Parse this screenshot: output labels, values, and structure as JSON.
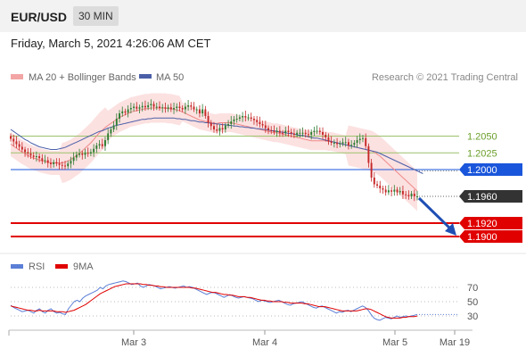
{
  "header": {
    "symbol": "EUR/USD",
    "interval": "30 MIN"
  },
  "timestamp": "Friday, March 5, 2021 4:26:06 AM CET",
  "legend": {
    "ma20": "MA 20 + Bollinger Bands",
    "ma50": "MA 50",
    "copyright": "Research © 2021 Trading Central",
    "rsi": "RSI",
    "rsi_ma": "9MA"
  },
  "colors": {
    "candle_up": "#2e7d32",
    "candle_down": "#c62828",
    "ma20": "#f08a8a",
    "ma50": "#4a5fa8",
    "support": "#e00000",
    "pivot": "#1a56db",
    "current": "#333333",
    "resistance_line": "#9bc26b",
    "resistance_text": "#6a9f2a",
    "rsi": "#5b7fd6"
  },
  "chart_data": [
    {
      "type": "candlestick",
      "ylim": [
        1.188,
        1.212
      ],
      "x_ticks": [
        "Mar 3",
        "Mar 4",
        "Mar 5",
        "Mar 19"
      ],
      "levels": [
        {
          "value": 1.205,
          "label": "1.2050",
          "kind": "resistance"
        },
        {
          "value": 1.2025,
          "label": "1.2025",
          "kind": "resistance"
        },
        {
          "value": 1.2,
          "label": "1.2000",
          "kind": "pivot"
        },
        {
          "value": 1.196,
          "label": "1.1960",
          "kind": "current"
        },
        {
          "value": 1.192,
          "label": "1.1920",
          "kind": "support"
        },
        {
          "value": 1.19,
          "label": "1.1900",
          "kind": "support"
        }
      ],
      "close": [
        1.2046,
        1.2042,
        1.2038,
        1.2034,
        1.203,
        1.2026,
        1.2024,
        1.2021,
        1.2019,
        1.202,
        1.2017,
        1.2013,
        1.2014,
        1.201,
        1.2008,
        1.2011,
        1.2009,
        1.2007,
        1.2006,
        1.2005,
        1.2009,
        1.2013,
        1.2018,
        1.2022,
        1.2024,
        1.2022,
        1.2025,
        1.2024,
        1.2026,
        1.2031,
        1.2036,
        1.2038,
        1.2035,
        1.2044,
        1.2054,
        1.206,
        1.2066,
        1.2076,
        1.2084,
        1.2087,
        1.2085,
        1.209,
        1.2092,
        1.2094,
        1.2091,
        1.2093,
        1.2095,
        1.2093,
        1.2096,
        1.2098,
        1.2094,
        1.2094,
        1.2092,
        1.2093,
        1.2091,
        1.2093,
        1.209,
        1.2092,
        1.2094,
        1.2092,
        1.209,
        1.2094,
        1.2096,
        1.2094,
        1.209,
        1.209,
        1.2084,
        1.209,
        1.208,
        1.207,
        1.2065,
        1.206,
        1.2058,
        1.2062,
        1.206,
        1.2066,
        1.2068,
        1.2072,
        1.2075,
        1.2076,
        1.2078,
        1.208,
        1.2078,
        1.2078,
        1.2076,
        1.2074,
        1.2071,
        1.2068,
        1.2066,
        1.2062,
        1.2059,
        1.2058,
        1.2056,
        1.2058,
        1.2055,
        1.2054,
        1.2058,
        1.2056,
        1.2054,
        1.2052,
        1.2055,
        1.2055,
        1.2055,
        1.2053,
        1.2052,
        1.2056,
        1.2058,
        1.2058,
        1.2056,
        1.2052,
        1.2048,
        1.2042,
        1.204,
        1.204,
        1.2038,
        1.2039,
        1.2041,
        1.2041,
        1.2036,
        1.2037,
        1.204,
        1.2044,
        1.2046,
        1.2047,
        1.2035,
        1.201,
        1.1988,
        1.1978,
        1.1976,
        1.1972,
        1.197,
        1.1966,
        1.1969,
        1.1967,
        1.197,
        1.1966,
        1.1968,
        1.1963,
        1.1962,
        1.196,
        1.1964,
        1.196,
        1.196
      ],
      "ma20": [
        1.2038,
        1.2035,
        1.2032,
        1.2029,
        1.2026,
        1.2024,
        1.2021,
        1.2019,
        1.2017,
        1.2016,
        1.2014,
        1.2013,
        1.2012,
        1.2011,
        1.201,
        1.201,
        1.201,
        1.201,
        1.201,
        1.2011,
        1.2013,
        1.2015,
        1.2018,
        1.2021,
        1.2024,
        1.2028,
        1.2032,
        1.2036,
        1.204,
        1.2045,
        1.205,
        1.2055,
        1.2059,
        1.2063,
        1.2066,
        1.2069,
        1.2072,
        1.2075,
        1.2078,
        1.208,
        1.2082,
        1.2084,
        1.2086,
        1.2087,
        1.2088,
        1.2089,
        1.209,
        1.2091,
        1.2091,
        1.2092,
        1.2092,
        1.2092,
        1.2092,
        1.2092,
        1.2092,
        1.2091,
        1.2091,
        1.209,
        1.2089,
        1.2088,
        1.2086,
        1.2084,
        1.2082,
        1.208,
        1.2078,
        1.2076,
        1.2074,
        1.2073,
        1.2072,
        1.2071,
        1.207,
        1.2069,
        1.2069,
        1.207,
        1.207,
        1.207,
        1.207,
        1.207,
        1.2069,
        1.2068,
        1.2067,
        1.2066,
        1.2065,
        1.2064,
        1.2063,
        1.2062,
        1.2061,
        1.206,
        1.2059,
        1.2058,
        1.2057,
        1.2056,
        1.2055,
        1.2055,
        1.2054,
        1.2053,
        1.2052,
        1.2051,
        1.205,
        1.2049,
        1.2048,
        1.2047,
        1.2046,
        1.2045,
        1.2044,
        1.2043,
        1.2043,
        1.2043,
        1.2043,
        1.2043,
        1.2043,
        1.2042,
        1.2042,
        1.2041,
        1.204,
        1.2039,
        1.2038,
        1.2037,
        1.2036,
        1.2035,
        1.2034,
        1.2033,
        1.2032,
        1.2031,
        1.203,
        1.2029,
        1.2028,
        1.2026,
        1.2023,
        1.202,
        1.2016,
        1.2012,
        1.2008,
        1.2004,
        1.2,
        1.1996,
        1.1992,
        1.1988,
        1.1984,
        1.198,
        1.1976,
        1.1972,
        1.1968
      ],
      "ma50": [
        1.206,
        1.2057,
        1.2054,
        1.2051,
        1.2048,
        1.2045,
        1.2043,
        1.204,
        1.2038,
        1.2036,
        1.2034,
        1.2033,
        1.2032,
        1.2031,
        1.203,
        1.203,
        1.203,
        1.2031,
        1.2032,
        1.2033,
        1.2035,
        1.2037,
        1.2039,
        1.2041,
        1.2043,
        1.2045,
        1.2047,
        1.2049,
        1.2051,
        1.2053,
        1.2055,
        1.2057,
        1.2058,
        1.206,
        1.2062,
        1.2063,
        1.2065,
        1.2066,
        1.2067,
        1.2068,
        1.2069,
        1.207,
        1.2071,
        1.2072,
        1.2073,
        1.2074,
        1.2075,
        1.2075,
        1.2076,
        1.2076,
        1.2077,
        1.2077,
        1.2077,
        1.2077,
        1.2077,
        1.2077,
        1.2077,
        1.2077,
        1.2076,
        1.2076,
        1.2075,
        1.2075,
        1.2074,
        1.2073,
        1.2073,
        1.2072,
        1.2071,
        1.2071,
        1.207,
        1.207,
        1.2069,
        1.2069,
        1.2068,
        1.2068,
        1.2067,
        1.2067,
        1.2066,
        1.2066,
        1.2065,
        1.2065,
        1.2064,
        1.2064,
        1.2063,
        1.2063,
        1.2062,
        1.2062,
        1.2061,
        1.2061,
        1.206,
        1.206,
        1.2059,
        1.2058,
        1.2058,
        1.2057,
        1.2056,
        1.2056,
        1.2055,
        1.2054,
        1.2054,
        1.2053,
        1.2052,
        1.2051,
        1.2051,
        1.205,
        1.2049,
        1.2048,
        1.2047,
        1.2047,
        1.2046,
        1.2045,
        1.2044,
        1.2043,
        1.2042,
        1.2041,
        1.204,
        1.2039,
        1.2038,
        1.2037,
        1.2036,
        1.2035,
        1.2034,
        1.2033,
        1.2032,
        1.2031,
        1.203,
        1.2029,
        1.2028,
        1.2027,
        1.2026,
        1.2024,
        1.2022,
        1.202,
        1.2018,
        1.2016,
        1.2014,
        1.2012,
        1.201,
        1.2008,
        1.2006,
        1.2004,
        1.2002,
        1.2,
        1.1998,
        1.1996,
        1.1994
      ]
    },
    {
      "type": "line",
      "ylim": [
        15,
        85
      ],
      "y_ticks": [
        70,
        50,
        30
      ],
      "rsi": [
        45,
        42,
        40,
        38,
        36,
        37,
        38,
        36,
        34,
        38,
        40,
        36,
        34,
        38,
        40,
        36,
        34,
        35,
        33,
        32,
        40,
        45,
        50,
        52,
        50,
        55,
        58,
        60,
        62,
        64,
        66,
        70,
        68,
        72,
        74,
        75,
        76,
        77,
        78,
        79,
        78,
        76,
        74,
        75,
        76,
        72,
        70,
        72,
        74,
        73,
        72,
        70,
        68,
        69,
        70,
        71,
        70,
        69,
        70,
        71,
        72,
        70,
        71,
        70,
        68,
        66,
        64,
        62,
        60,
        62,
        63,
        62,
        60,
        58,
        56,
        58,
        60,
        58,
        56,
        55,
        56,
        57,
        56,
        55,
        54,
        52,
        50,
        52,
        51,
        50,
        49,
        50,
        51,
        52,
        50,
        48,
        46,
        45,
        47,
        48,
        49,
        50,
        48,
        46,
        44,
        42,
        41,
        43,
        44,
        42,
        40,
        38,
        36,
        34,
        36,
        35,
        37,
        38,
        36,
        38,
        40,
        42,
        44,
        42,
        38,
        32,
        27,
        25,
        24,
        26,
        28,
        27,
        26,
        28,
        30,
        28,
        29,
        30,
        29,
        30,
        31,
        32
      ],
      "rsi_ma": [
        44,
        43,
        42,
        41,
        40,
        39,
        38,
        38,
        37,
        37,
        38,
        37,
        37,
        37,
        37,
        37,
        36,
        36,
        36,
        35,
        36,
        37,
        38,
        40,
        42,
        44,
        46,
        49,
        52,
        55,
        58,
        61,
        63,
        65,
        67,
        69,
        71,
        72,
        73,
        74,
        75,
        75,
        75,
        75,
        75,
        75,
        74,
        74,
        73,
        73,
        72,
        72,
        71,
        71,
        70,
        70,
        70,
        70,
        70,
        70,
        70,
        70,
        70,
        69,
        69,
        68,
        67,
        66,
        65,
        64,
        63,
        63,
        62,
        61,
        60,
        60,
        59,
        59,
        58,
        57,
        57,
        57,
        56,
        56,
        55,
        54,
        53,
        52,
        52,
        51,
        51,
        50,
        50,
        50,
        50,
        49,
        49,
        48,
        48,
        48,
        48,
        48,
        47,
        47,
        46,
        45,
        44,
        43,
        43,
        43,
        42,
        41,
        40,
        39,
        38,
        37,
        37,
        37,
        37,
        37,
        37,
        38,
        39,
        40,
        40,
        39,
        37,
        35,
        33,
        31,
        29,
        28,
        27,
        27,
        27,
        27,
        28,
        28,
        29,
        29,
        29,
        30
      ]
    }
  ]
}
